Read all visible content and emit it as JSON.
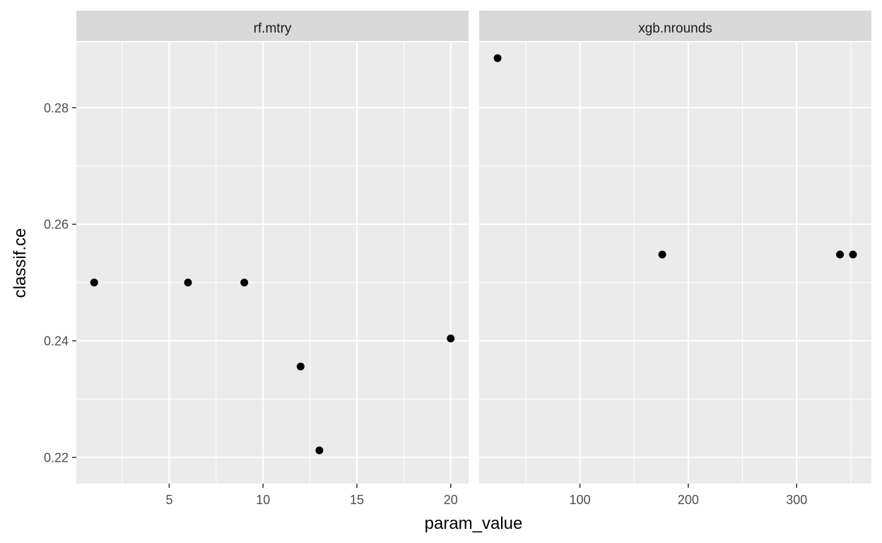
{
  "chart_data": {
    "type": "scatter",
    "xlabel": "param_value",
    "ylabel": "classif.ce",
    "ylim": [
      0.2155,
      0.2912
    ],
    "yticks": [
      0.22,
      0.24,
      0.26,
      0.28
    ],
    "ytick_labels": [
      "0.22",
      "0.24",
      "0.26",
      "0.28"
    ],
    "grid": true,
    "facets": [
      {
        "name": "rf.mtry",
        "xlim": [
          0.05,
          20.95
        ],
        "xticks": [
          5,
          10,
          15,
          20
        ],
        "xtick_labels": [
          "5",
          "10",
          "15",
          "20"
        ],
        "xminor": [
          2.5,
          7.5,
          12.5,
          17.5
        ],
        "points": [
          {
            "x": 1,
            "y": 0.25
          },
          {
            "x": 6,
            "y": 0.25
          },
          {
            "x": 9,
            "y": 0.25
          },
          {
            "x": 12,
            "y": 0.2356
          },
          {
            "x": 13,
            "y": 0.2212
          },
          {
            "x": 20,
            "y": 0.2404
          }
        ]
      },
      {
        "name": "xgb.nrounds",
        "xlim": [
          7,
          369
        ],
        "xticks": [
          100,
          200,
          300
        ],
        "xtick_labels": [
          "100",
          "200",
          "300"
        ],
        "xminor": [
          50,
          150,
          250,
          350
        ],
        "points": [
          {
            "x": 24,
            "y": 0.2885
          },
          {
            "x": 176,
            "y": 0.2548
          },
          {
            "x": 340,
            "y": 0.2548
          },
          {
            "x": 352,
            "y": 0.2548
          }
        ]
      }
    ]
  }
}
